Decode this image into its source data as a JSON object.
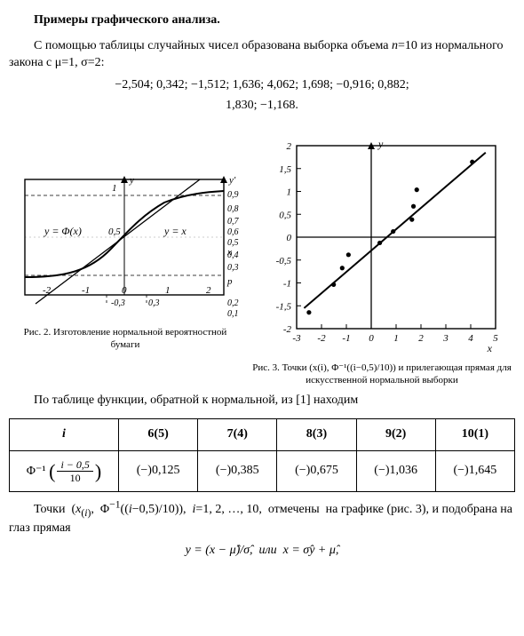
{
  "section_title": "Примеры графического анализа.",
  "para1": "С помощью таблицы случайных чисел образована выборка объема n=10 из нормального закона с μ=1, σ=2:",
  "samples_line1": "−2,504; 0,342; −1,512; 1,636; 4,062; 1,698; −0,916; 0,882;",
  "samples_line2": "1,830; −1,168.",
  "fig2": {
    "caption": "Рис. 2. Изготовление нормальной вероятностной бумаги",
    "y_label": "y",
    "yprime_label": "y′",
    "x_label": "x",
    "p_label": "p",
    "curve_label": "y = Φ(x)",
    "line_label": "y = x",
    "x_ticks": [
      "-2",
      "-1",
      "0",
      "1",
      "2"
    ],
    "y_ticks": [
      "0,5",
      "1"
    ],
    "yr_ticks": [
      "0,1",
      "0,2",
      "0,3",
      "0,4",
      "0,5",
      "0,6",
      "0,7",
      "0,8",
      "0,9"
    ],
    "y_dashed_top": 0.9,
    "y_dashed_bot": 0.1
  },
  "fig3": {
    "caption": "Рис. 3. Точки (x(i), Φ⁻¹((i−0,5)/10)) и прилегающая прямая для искусственной нормальной выборки",
    "x_label": "x",
    "y_label": "y",
    "x_ticks": [
      "-3",
      "-2",
      "-1",
      "0",
      "1",
      "2",
      "3",
      "4",
      "5"
    ],
    "y_ticks": [
      "-2",
      "-1,5",
      "-1",
      "-0,5",
      "0",
      "0,5",
      "1",
      "1,5",
      "2"
    ],
    "xlim": [
      -3,
      5
    ],
    "ylim": [
      -2,
      2
    ],
    "points": [
      {
        "x": -2.504,
        "y": -1.645
      },
      {
        "x": -1.512,
        "y": -1.036
      },
      {
        "x": -1.168,
        "y": -0.675
      },
      {
        "x": -0.916,
        "y": -0.385
      },
      {
        "x": 0.342,
        "y": -0.125
      },
      {
        "x": 0.882,
        "y": 0.125
      },
      {
        "x": 1.636,
        "y": 0.385
      },
      {
        "x": 1.698,
        "y": 0.675
      },
      {
        "x": 1.83,
        "y": 1.036
      },
      {
        "x": 4.062,
        "y": 1.645
      }
    ],
    "line": {
      "x1": -2.7,
      "y1": -1.55,
      "x2": 4.6,
      "y2": 1.85
    },
    "colors": {
      "axis": "#000",
      "point": "#000",
      "line": "#000",
      "frame": "#000"
    }
  },
  "para2": "По таблице функции, обратной к нормальной, из [1] находим",
  "table": {
    "head_i": "i",
    "head_cols": [
      "6(5)",
      "7(4)",
      "8(3)",
      "9(2)",
      "10(1)"
    ],
    "row_label_html": "Φ⁻¹",
    "row_frac_num": "i − 0,5",
    "row_frac_den": "10",
    "cells": [
      "(−)0,125",
      "(−)0,385",
      "(−)0,675",
      "(−)1,036",
      "(−)1,645"
    ]
  },
  "para3": "Точки (x(i), Φ⁻¹((i−0,5)/10)), i=1, 2, …, 10, отмечены на графике (рис. 3), и подобрана на глаз прямая",
  "eq_final": "y = (x − μ̂)/σ̂,  или  x = σ̂y + μ̂,"
}
